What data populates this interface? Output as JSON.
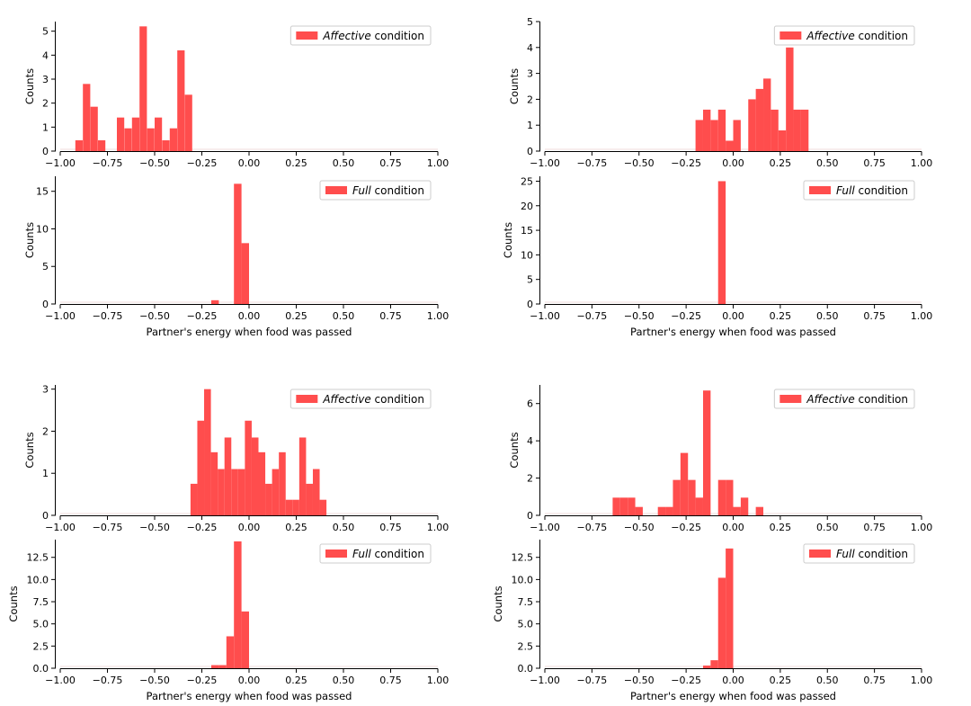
{
  "figure": {
    "bar_color": "#ff4d4d",
    "legend_patch_color": "#ff4d4d",
    "legend_border_color": "#cccccc",
    "axis_color": "#000000"
  },
  "chart_data": [
    {
      "type": "bar",
      "id": "p1-affective",
      "title": "",
      "legend": {
        "emph": "Affective",
        "rest": " condition",
        "placement": "top-right"
      },
      "xlabel": "",
      "ylabel": "Counts",
      "xlim": [
        -1.0,
        1.0
      ],
      "ylim": [
        0,
        5.4
      ],
      "xticks": [
        -1.0,
        -0.75,
        -0.5,
        -0.25,
        0.0,
        0.25,
        0.5,
        0.75,
        1.0
      ],
      "xtick_labels": [
        "−1.00",
        "−0.75",
        "−0.50",
        "−0.25",
        "0.00",
        "0.25",
        "0.50",
        "0.75",
        "1.00"
      ],
      "yticks": [
        0,
        1,
        2,
        3,
        4,
        5
      ],
      "ytick_labels": [
        "0",
        "1",
        "2",
        "3",
        "4",
        "5"
      ],
      "bin_width": 0.039,
      "bins": [
        -0.92,
        -0.88,
        -0.84,
        -0.8,
        -0.7,
        -0.66,
        -0.62,
        -0.58,
        -0.54,
        -0.5,
        -0.46,
        -0.42,
        -0.38,
        -0.34
      ],
      "values": [
        0.45,
        2.8,
        1.85,
        0.45,
        1.4,
        0.95,
        1.4,
        5.2,
        0.95,
        1.4,
        0.45,
        0.95,
        4.2,
        2.35
      ]
    },
    {
      "type": "bar",
      "id": "p1-full",
      "title": "",
      "legend": {
        "emph": "Full",
        "rest": " condition",
        "placement": "top-right"
      },
      "xlabel": "Partner's energy when food was passed",
      "ylabel": "Counts",
      "xlim": [
        -1.0,
        1.0
      ],
      "ylim": [
        0,
        17
      ],
      "xticks": [
        -1.0,
        -0.75,
        -0.5,
        -0.25,
        0.0,
        0.25,
        0.5,
        0.75,
        1.0
      ],
      "xtick_labels": [
        "−1.00",
        "−0.75",
        "−0.50",
        "−0.25",
        "0.00",
        "0.25",
        "0.50",
        "0.75",
        "1.00"
      ],
      "yticks": [
        0,
        5,
        10,
        15
      ],
      "ytick_labels": [
        "0",
        "5",
        "10",
        "15"
      ],
      "bin_width": 0.04,
      "bins": [
        -0.2,
        -0.08,
        -0.04
      ],
      "values": [
        0.5,
        16,
        8.1
      ]
    },
    {
      "type": "bar",
      "id": "p2-affective",
      "title": "",
      "legend": {
        "emph": "Affective",
        "rest": " condition",
        "placement": "top-right"
      },
      "xlabel": "",
      "ylabel": "Counts",
      "xlim": [
        -1.0,
        1.0
      ],
      "ylim": [
        0,
        5
      ],
      "xticks": [
        -1.0,
        -0.75,
        -0.5,
        -0.25,
        0.0,
        0.25,
        0.5,
        0.75,
        1.0
      ],
      "xtick_labels": [
        "−1.00",
        "−0.75",
        "−0.50",
        "−0.25",
        "0.00",
        "0.25",
        "0.50",
        "0.75",
        "1.00"
      ],
      "yticks": [
        0,
        1,
        2,
        3,
        4,
        5
      ],
      "ytick_labels": [
        "0",
        "1",
        "2",
        "3",
        "4",
        "5"
      ],
      "bin_width": 0.04,
      "bins": [
        -0.2,
        -0.16,
        -0.12,
        -0.08,
        -0.04,
        0.0,
        0.08,
        0.12,
        0.16,
        0.2,
        0.24,
        0.28,
        0.32,
        0.36
      ],
      "values": [
        1.2,
        1.6,
        1.2,
        1.6,
        0.4,
        1.2,
        2.0,
        2.4,
        2.8,
        1.6,
        0.8,
        4.0,
        1.6,
        1.6
      ]
    },
    {
      "type": "bar",
      "id": "p2-full",
      "title": "",
      "legend": {
        "emph": "Full",
        "rest": " condition",
        "placement": "top-right"
      },
      "xlabel": "Partner's energy when food was passed",
      "ylabel": "Counts",
      "xlim": [
        -1.0,
        1.0
      ],
      "ylim": [
        0,
        26
      ],
      "xticks": [
        -1.0,
        -0.75,
        -0.5,
        -0.25,
        0.0,
        0.25,
        0.5,
        0.75,
        1.0
      ],
      "xtick_labels": [
        "−1.00",
        "−0.75",
        "−0.50",
        "−0.25",
        "0.00",
        "0.25",
        "0.50",
        "0.75",
        "1.00"
      ],
      "yticks": [
        0,
        5,
        10,
        15,
        20,
        25
      ],
      "ytick_labels": [
        "0",
        "5",
        "10",
        "15",
        "20",
        "25"
      ],
      "bin_width": 0.04,
      "bins": [
        -0.08
      ],
      "values": [
        25
      ]
    },
    {
      "type": "bar",
      "id": "p3-affective",
      "title": "",
      "legend": {
        "emph": "Affective",
        "rest": " condition",
        "placement": "top-right"
      },
      "xlabel": "",
      "ylabel": "Counts",
      "xlim": [
        -1.0,
        1.0
      ],
      "ylim": [
        0,
        3.1
      ],
      "xticks": [
        -1.0,
        -0.75,
        -0.5,
        -0.25,
        0.0,
        0.25,
        0.5,
        0.75,
        1.0
      ],
      "xtick_labels": [
        "−1.00",
        "−0.75",
        "−0.50",
        "−0.25",
        "0.00",
        "0.25",
        "0.50",
        "0.75",
        "1.00"
      ],
      "yticks": [
        0,
        1,
        2,
        3
      ],
      "ytick_labels": [
        "0",
        "1",
        "2",
        "3"
      ],
      "bin_width": 0.036,
      "bins": [
        -0.31,
        -0.274,
        -0.238,
        -0.202,
        -0.166,
        -0.13,
        -0.094,
        -0.058,
        -0.022,
        0.014,
        0.05,
        0.086,
        0.122,
        0.158,
        0.194,
        0.23,
        0.266,
        0.302,
        0.338,
        0.374,
        0.41
      ],
      "values": [
        0.75,
        2.25,
        3.0,
        1.5,
        1.1,
        1.85,
        1.1,
        1.1,
        2.25,
        1.85,
        1.5,
        0.75,
        1.1,
        1.5,
        0.37,
        0.37,
        1.85,
        0.75,
        1.1,
        0.37,
        0.0
      ]
    },
    {
      "type": "bar",
      "id": "p3-full",
      "title": "",
      "legend": {
        "emph": "Full",
        "rest": " condition",
        "placement": "top-right"
      },
      "xlabel": "Partner's energy when food was passed",
      "ylabel": "Counts",
      "xlim": [
        -1.0,
        1.0
      ],
      "ylim": [
        0,
        14.5
      ],
      "xticks": [
        -1.0,
        -0.75,
        -0.5,
        -0.25,
        0.0,
        0.25,
        0.5,
        0.75,
        1.0
      ],
      "xtick_labels": [
        "−1.00",
        "−0.75",
        "−0.50",
        "−0.25",
        "0.00",
        "0.25",
        "0.50",
        "0.75",
        "1.00"
      ],
      "yticks": [
        0,
        2.5,
        5,
        7.5,
        10,
        12.5
      ],
      "ytick_labels": [
        "0.0",
        "2.5",
        "5.0",
        "7.5",
        "10.0",
        "12.5"
      ],
      "bin_width": 0.04,
      "bins": [
        -0.2,
        -0.16,
        -0.12,
        -0.08,
        -0.04
      ],
      "values": [
        0.35,
        0.35,
        3.6,
        14.3,
        6.4
      ]
    },
    {
      "type": "bar",
      "id": "p4-affective",
      "title": "",
      "legend": {
        "emph": "Affective",
        "rest": " condition",
        "placement": "top-right"
      },
      "xlabel": "",
      "ylabel": "Counts",
      "xlim": [
        -1.0,
        1.0
      ],
      "ylim": [
        0,
        7
      ],
      "xticks": [
        -1.0,
        -0.75,
        -0.5,
        -0.25,
        0.0,
        0.25,
        0.5,
        0.75,
        1.0
      ],
      "xtick_labels": [
        "−1.00",
        "−0.75",
        "−0.50",
        "−0.25",
        "0.00",
        "0.25",
        "0.50",
        "0.75",
        "1.00"
      ],
      "yticks": [
        0,
        2,
        4,
        6
      ],
      "ytick_labels": [
        "0",
        "2",
        "4",
        "6"
      ],
      "bin_width": 0.04,
      "bins": [
        -0.64,
        -0.6,
        -0.56,
        -0.52,
        -0.4,
        -0.36,
        -0.32,
        -0.28,
        -0.24,
        -0.2,
        -0.16,
        -0.08,
        -0.04,
        0.0,
        0.04,
        0.12
      ],
      "values": [
        0.95,
        0.95,
        0.95,
        0.45,
        0.45,
        0.45,
        1.9,
        3.35,
        1.9,
        0.95,
        6.7,
        1.9,
        1.9,
        0.45,
        0.95,
        0.45
      ]
    },
    {
      "type": "bar",
      "id": "p4-full",
      "title": "",
      "legend": {
        "emph": "Full",
        "rest": " condition",
        "placement": "top-right"
      },
      "xlabel": "Partner's energy when food was passed",
      "ylabel": "Counts",
      "xlim": [
        -1.0,
        1.0
      ],
      "ylim": [
        0,
        14.5
      ],
      "xticks": [
        -1.0,
        -0.75,
        -0.5,
        -0.25,
        0.0,
        0.25,
        0.5,
        0.75,
        1.0
      ],
      "xtick_labels": [
        "−1.00",
        "−0.75",
        "−0.50",
        "−0.25",
        "0.00",
        "0.25",
        "0.50",
        "0.75",
        "1.00"
      ],
      "yticks": [
        0,
        2.5,
        5,
        7.5,
        10,
        12.5
      ],
      "ytick_labels": [
        "0.0",
        "2.5",
        "5.0",
        "7.5",
        "10.0",
        "12.5"
      ],
      "bin_width": 0.04,
      "bins": [
        -0.16,
        -0.12,
        -0.08,
        -0.04
      ],
      "values": [
        0.3,
        0.9,
        10.2,
        13.5
      ]
    }
  ]
}
